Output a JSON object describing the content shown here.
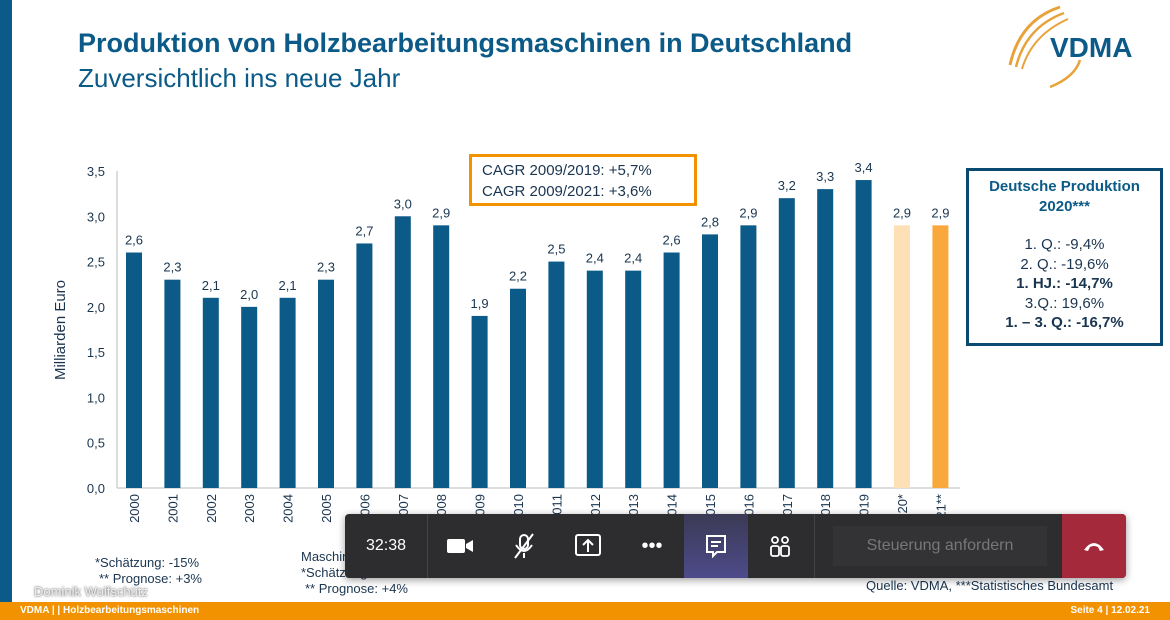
{
  "slide": {
    "title": "Produktion von Holzbearbeitungsmaschinen in Deutschland",
    "subtitle": "Zuversichtlich ins neue Jahr",
    "logo_text": "VDMA"
  },
  "chart_data": {
    "type": "bar",
    "ylabel": "Milliarden Euro",
    "ylim": [
      0,
      3.5
    ],
    "yticks": [
      "0,0",
      "0,5",
      "1,0",
      "1,5",
      "2,0",
      "2,5",
      "3,0",
      "3,5"
    ],
    "categories": [
      "2000",
      "2001",
      "2002",
      "2003",
      "2004",
      "2005",
      "2006",
      "2007",
      "2008",
      "2009",
      "2010",
      "2011",
      "2012",
      "2013",
      "2014",
      "2015",
      "2016",
      "2017",
      "2018",
      "2019",
      "2020*",
      "2021**"
    ],
    "values": [
      2.6,
      2.3,
      2.1,
      2.0,
      2.1,
      2.3,
      2.7,
      3.0,
      2.9,
      1.9,
      2.2,
      2.5,
      2.4,
      2.4,
      2.6,
      2.8,
      2.9,
      3.2,
      3.3,
      3.4,
      2.9,
      2.9
    ],
    "labels": [
      "2,6",
      "2,3",
      "2,1",
      "2,0",
      "2,1",
      "2,3",
      "2,7",
      "3,0",
      "2,9",
      "1,9",
      "2,2",
      "2,5",
      "2,4",
      "2,4",
      "2,6",
      "2,8",
      "2,9",
      "3,2",
      "3,3",
      "3,4",
      "2,9",
      "2,9"
    ],
    "colors": {
      "actual": "#0b5a87",
      "estimate": "#fde0b6",
      "forecast": "#f9a93b"
    },
    "grid": false
  },
  "cagr": [
    "CAGR 2009/2019: +5,7%",
    "CAGR 2009/2021: +3,6%"
  ],
  "infobox": {
    "title": "Deutsche Produktion",
    "year": "2020***",
    "lines": [
      "1. Q.: -9,4%",
      "2. Q.: -19,6%",
      "1. HJ.: -14,7%",
      "3.Q.: 19,6%",
      "1. – 3. Q.: -16,7%"
    ]
  },
  "notes": {
    "left": [
      "*Schätzung: -15%",
      "** Prognose: +3%"
    ],
    "middle": [
      "Maschinenbau, gesamt",
      "*Schätzung: -12%",
      "** Prognose: +4%"
    ],
    "source": "Quelle: VDMA, ***Statistisches Bundesamt"
  },
  "speaker": "Dominik Wolfschütz",
  "footer": {
    "left": "VDMA | | Holzbearbeitungsmaschinen",
    "right": "Seite 4 | 12.02.21"
  },
  "toolbar": {
    "timer": "32:38",
    "request_control": "Steuerung anfordern"
  }
}
